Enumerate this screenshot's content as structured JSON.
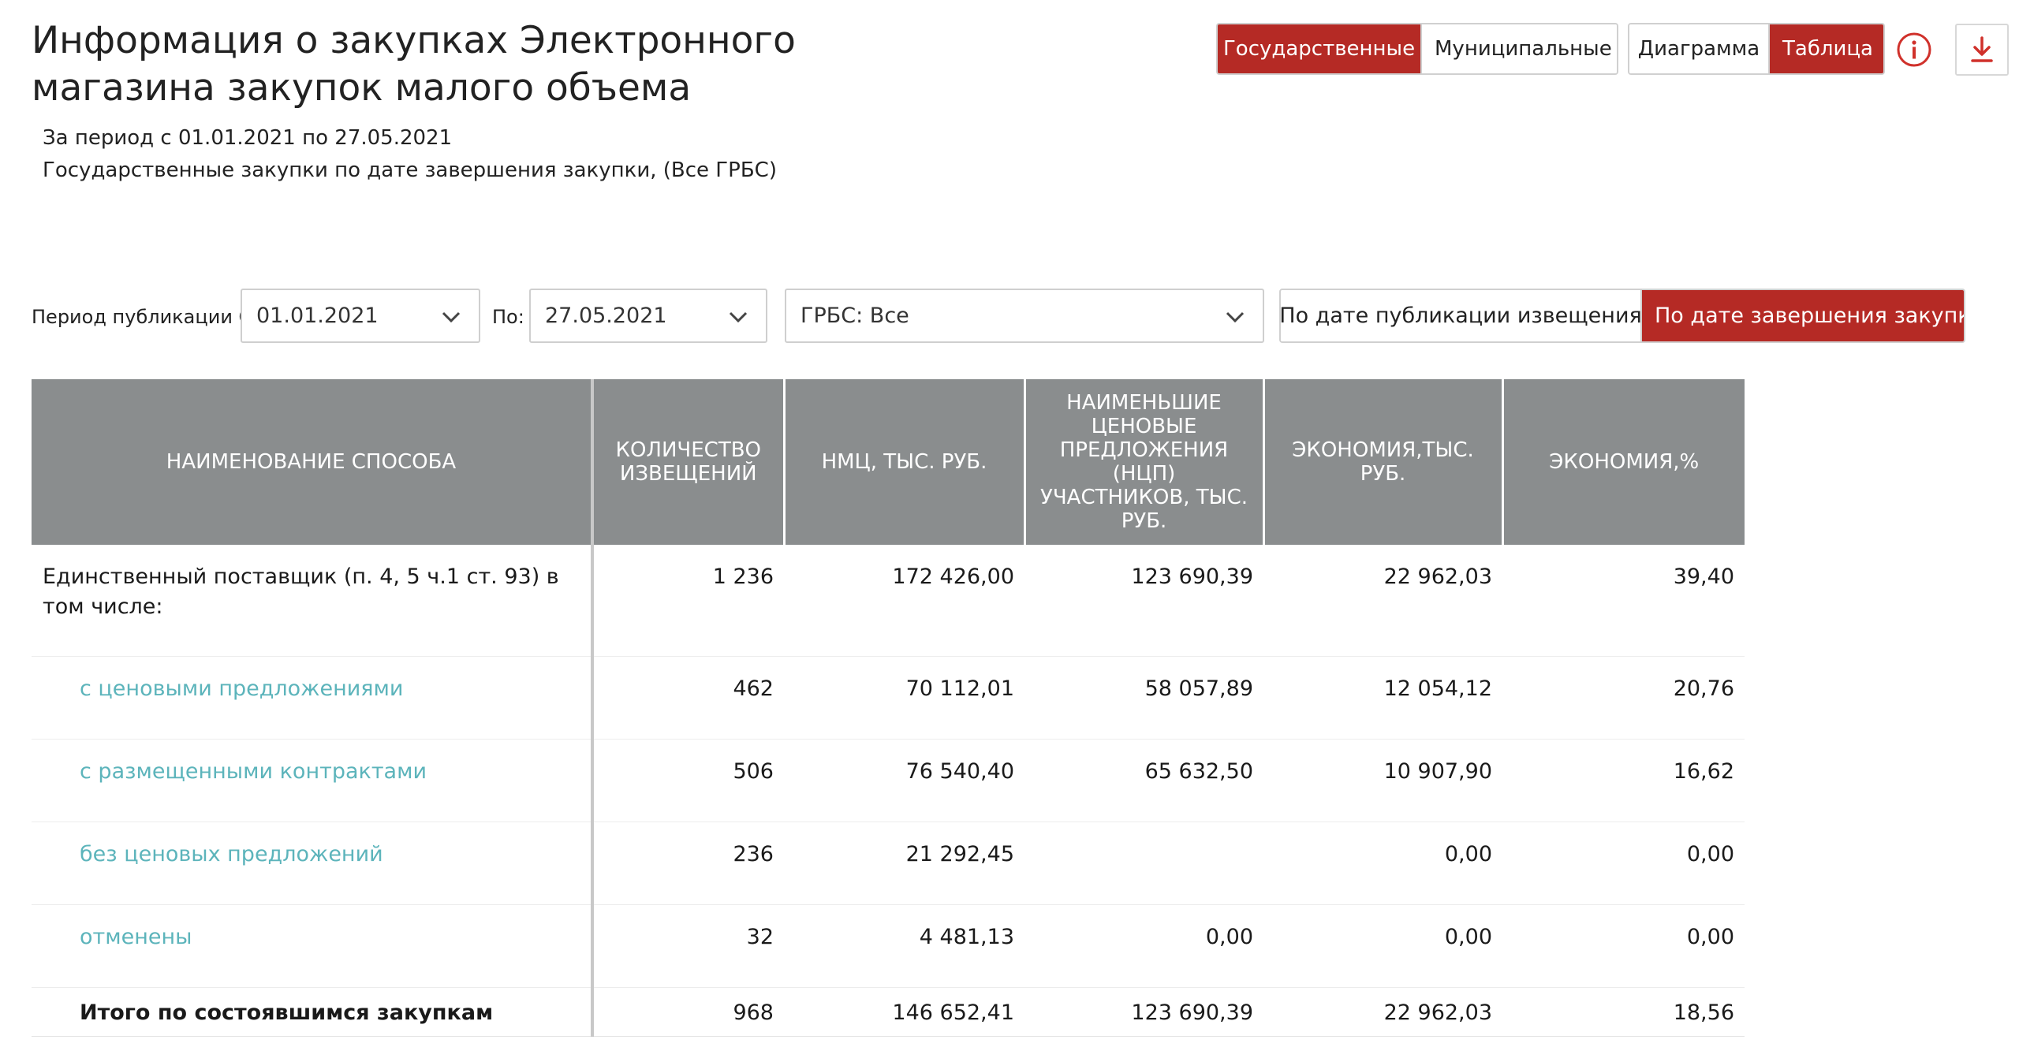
{
  "page": {
    "title": "Информация о закупках Электронного магазина закупок малого объема",
    "period_text": "За период с 01.01.2021 по 27.05.2021",
    "description": "Государственные закупки по дате завершения закупки, (Все ГРБС)"
  },
  "toolbar": {
    "kind_options": [
      "Государственные",
      "Муниципальные"
    ],
    "kind_selected": "Государственные",
    "view_options": [
      "Диаграмма",
      "Таблица"
    ],
    "view_selected": "Таблица",
    "info_icon": "info-circle-icon",
    "download_icon": "download-arrow-icon"
  },
  "filters": {
    "period_from_label": "Период публикации С:",
    "period_from_value": "01.01.2021",
    "period_to_label": "По:",
    "period_to_value": "27.05.2021",
    "grbs_value": "ГРБС: Все",
    "date_mode_options": [
      "По дате публикации извещения",
      "По дате завершения закупки"
    ],
    "date_mode_selected": "По дате завершения закупки"
  },
  "table": {
    "headers": [
      "Наименование способа",
      "Количество извещений",
      "НМЦ, тыс. руб.",
      "Наименьшие ценовые предложения (НЦП) участников, тыс. руб.",
      "Экономия,тыс. руб.",
      "Экономия,%"
    ],
    "rows": [
      {
        "name": "Единственный поставщик (п. 4, 5 ч.1 ст. 93) в том числе:",
        "count": "1 236",
        "nmc": "172 426,00",
        "ncp": "123 690,39",
        "economy": "22 962,03",
        "economy_pct": "39,40"
      },
      {
        "name": "с ценовыми предложениями",
        "count": "462",
        "nmc": "70 112,01",
        "ncp": "58 057,89",
        "economy": "12 054,12",
        "economy_pct": "20,76"
      },
      {
        "name": "с размещенными контрактами",
        "count": "506",
        "nmc": "76 540,40",
        "ncp": "65 632,50",
        "economy": "10 907,90",
        "economy_pct": "16,62"
      },
      {
        "name": "без ценовых предложений",
        "count": "236",
        "nmc": "21 292,45",
        "ncp": "",
        "economy": "0,00",
        "economy_pct": "0,00"
      },
      {
        "name": "отменены",
        "count": "32",
        "nmc": "4 481,13",
        "ncp": "0,00",
        "economy": "0,00",
        "economy_pct": "0,00"
      },
      {
        "name": "Итого по состоявшимся закупкам",
        "count": "968",
        "nmc": "146 652,41",
        "ncp": "123 690,39",
        "economy": "22 962,03",
        "economy_pct": "18,56"
      }
    ]
  },
  "colors": {
    "accent": "#b52a25",
    "header_bg": "#8a8d8e",
    "link": "#5cb4bb"
  }
}
